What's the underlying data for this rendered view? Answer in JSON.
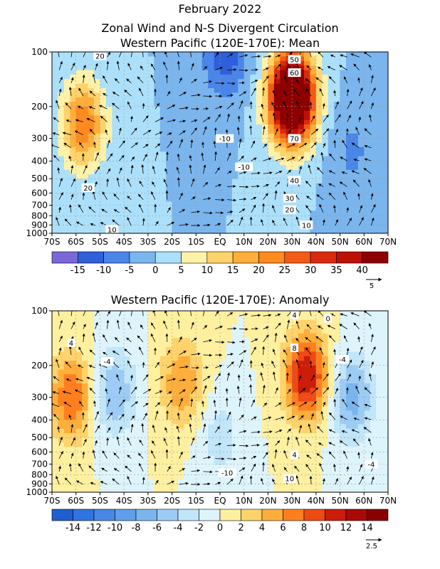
{
  "titles": {
    "main": "February 2022",
    "line1": "Zonal Wind and N-S Divergent Circulation",
    "line2": "Western Pacific (120E-170E): Mean",
    "panel2": "Western Pacific (120E-170E): Anomaly"
  },
  "chart_data": [
    {
      "type": "heatmap",
      "panel": "mean",
      "title": "Western Pacific (120E-170E): Mean",
      "x_ticks": [
        "70S",
        "60S",
        "50S",
        "40S",
        "30S",
        "20S",
        "10S",
        "EQ",
        "10N",
        "20N",
        "30N",
        "40N",
        "50N",
        "60N",
        "70N"
      ],
      "y_ticks": [
        "100",
        "200",
        "300",
        "400",
        "500",
        "600",
        "700",
        "800",
        "900",
        "1000"
      ],
      "y_scale": "log-pressure",
      "ylim": [
        1000,
        100
      ],
      "xlim": [
        -70,
        70
      ],
      "colorbar": {
        "levels": [
          -15,
          -10,
          -5,
          0,
          5,
          10,
          15,
          20,
          25,
          30,
          35,
          40
        ],
        "tick_labels": [
          "-15",
          "-10",
          "-5",
          "0",
          "5",
          "10",
          "15",
          "20",
          "25",
          "30",
          "35",
          "40"
        ],
        "colors": [
          "#7b68d8",
          "#2f5fd9",
          "#4a86e8",
          "#7ab5ee",
          "#ace0fa",
          "#fff2a8",
          "#ffd36b",
          "#ffae3b",
          "#ff8a1e",
          "#f55a14",
          "#dc2a0e",
          "#bf0f07",
          "#8e0000"
        ]
      },
      "contour_labels": [
        "20",
        "20",
        "10",
        "-10",
        "-10",
        "50",
        "60",
        "70",
        "40",
        "30",
        "20",
        "10"
      ],
      "features": [
        {
          "lat": -57,
          "p": 250,
          "value": 24
        },
        {
          "lat": 2,
          "p": 100,
          "value": -14
        },
        {
          "lat": 30,
          "p": 180,
          "value": 72
        },
        {
          "lat": 55,
          "p": 350,
          "value": -6
        }
      ],
      "vector_ref": "5"
    },
    {
      "type": "heatmap",
      "panel": "anomaly",
      "title": "Western Pacific (120E-170E): Anomaly",
      "x_ticks": [
        "70S",
        "60S",
        "50S",
        "40S",
        "30S",
        "20S",
        "10S",
        "EQ",
        "10N",
        "20N",
        "30N",
        "40N",
        "50N",
        "60N",
        "70N"
      ],
      "y_ticks": [
        "100",
        "200",
        "300",
        "400",
        "500",
        "600",
        "700",
        "800",
        "900",
        "1000"
      ],
      "y_scale": "log-pressure",
      "ylim": [
        1000,
        100
      ],
      "xlim": [
        -70,
        70
      ],
      "colorbar": {
        "levels": [
          -14,
          -12,
          -10,
          -8,
          -6,
          -4,
          -2,
          0,
          2,
          4,
          6,
          8,
          10,
          12,
          14
        ],
        "tick_labels": [
          "-14",
          "-12",
          "-10",
          "-8",
          "-6",
          "-4",
          "-2",
          "0",
          "2",
          "4",
          "6",
          "8",
          "10",
          "12",
          "14"
        ],
        "colors": [
          "#1f5fcf",
          "#2f74e0",
          "#4a86e8",
          "#609ee9",
          "#7ab5ee",
          "#9cccf5",
          "#c1e6fa",
          "#def4fc",
          "#fff0a0",
          "#ffd36b",
          "#ffae3b",
          "#ff7f1e",
          "#ee4a14",
          "#cc1c0a",
          "#aa0a05",
          "#8a0000"
        ]
      },
      "contour_labels": [
        "4",
        "-4",
        "4",
        "8",
        "4",
        "0",
        "-4",
        "-4",
        "-10",
        "10"
      ],
      "features": [
        {
          "lat": -62,
          "p": 300,
          "value": 8
        },
        {
          "lat": -44,
          "p": 280,
          "value": -6
        },
        {
          "lat": -16,
          "p": 250,
          "value": 6
        },
        {
          "lat": 0,
          "p": 500,
          "value": -3
        },
        {
          "lat": 36,
          "p": 230,
          "value": 12
        },
        {
          "lat": 55,
          "p": 300,
          "value": -7
        }
      ],
      "vector_ref": "2.5"
    }
  ]
}
